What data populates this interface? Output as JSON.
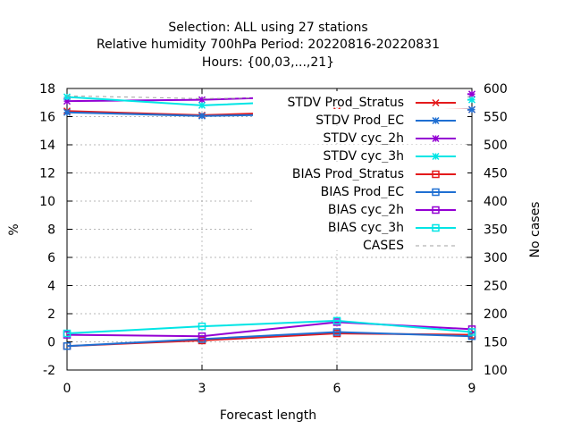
{
  "chart_data": {
    "type": "line",
    "title": [
      "Selection: ALL using    27 stations",
      "Relative humidity 700hPa   Period: 20220816-20220831",
      "Hours: {00,03,...,21}"
    ],
    "xlabel": "Forecast length",
    "ylabel": "%",
    "y2label": "No cases",
    "x": [
      0,
      3,
      6,
      9
    ],
    "xlim": [
      0,
      9
    ],
    "ylim": [
      -2,
      18
    ],
    "y2lim": [
      100,
      600
    ],
    "xticks": [
      "0",
      "3",
      "6",
      "9"
    ],
    "yticks": [
      "-2",
      "0",
      "2",
      "4",
      "6",
      "8",
      "10",
      "12",
      "14",
      "16",
      "18"
    ],
    "y2ticks": [
      "100",
      "150",
      "200",
      "250",
      "300",
      "350",
      "400",
      "450",
      "500",
      "550",
      "600"
    ],
    "grid": true,
    "legend_position": "top-right",
    "series": [
      {
        "name": "STDV Prod_Stratus",
        "color": "#e41a1c",
        "marker": "cross",
        "axis": "y1",
        "values": [
          16.4,
          16.1,
          16.4,
          16.5
        ]
      },
      {
        "name": "STDV Prod_EC",
        "color": "#1f6fd2",
        "marker": "star",
        "axis": "y1",
        "values": [
          16.3,
          16.05,
          16.2,
          16.5
        ]
      },
      {
        "name": "STDV cyc_2h",
        "color": "#9400d3",
        "marker": "star",
        "axis": "y1",
        "values": [
          17.1,
          17.2,
          17.5,
          17.6
        ]
      },
      {
        "name": "STDV cyc_3h",
        "color": "#00e5e5",
        "marker": "star",
        "axis": "y1",
        "values": [
          17.4,
          16.8,
          17.2,
          17.2
        ]
      },
      {
        "name": "BIAS Prod_Stratus",
        "color": "#e41a1c",
        "marker": "square",
        "axis": "y1",
        "values": [
          -0.3,
          0.1,
          0.6,
          0.5
        ]
      },
      {
        "name": "BIAS Prod_EC",
        "color": "#1f6fd2",
        "marker": "square",
        "axis": "y1",
        "values": [
          -0.3,
          0.2,
          0.7,
          0.4
        ]
      },
      {
        "name": "BIAS cyc_2h",
        "color": "#9400d3",
        "marker": "square",
        "axis": "y1",
        "values": [
          0.5,
          0.4,
          1.4,
          0.9
        ]
      },
      {
        "name": "BIAS cyc_3h",
        "color": "#00e5e5",
        "marker": "square",
        "axis": "y1",
        "values": [
          0.6,
          1.1,
          1.5,
          0.7
        ]
      },
      {
        "name": "CASES",
        "color": "#a0a0a0",
        "marker": "none",
        "dashed": true,
        "axis": "y2",
        "values": [
          587,
          582,
          585,
          585
        ]
      }
    ]
  }
}
